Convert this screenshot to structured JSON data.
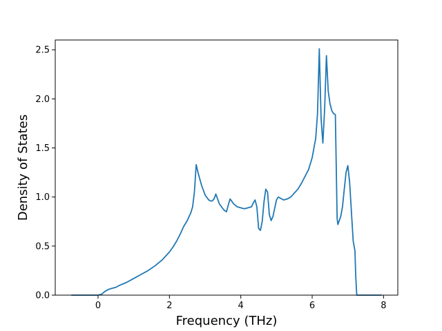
{
  "chart_data": {
    "type": "line",
    "xlabel": "Frequency (THz)",
    "ylabel": "Density of States",
    "xlim": [
      -1.2,
      8.4
    ],
    "ylim": [
      0,
      2.6
    ],
    "xticks": [
      0,
      2,
      4,
      6,
      8
    ],
    "xtick_labels": [
      "0",
      "2",
      "4",
      "6",
      "8"
    ],
    "yticks": [
      0,
      0.5,
      1.0,
      1.5,
      2.0,
      2.5
    ],
    "ytick_labels": [
      "0.0",
      "0.5",
      "1.0",
      "1.5",
      "2.0",
      "2.5"
    ],
    "grid": false,
    "line_color": "#1f77b4",
    "series": [
      {
        "x": [
          -0.75,
          -0.2,
          0.0,
          0.1,
          0.2,
          0.3,
          0.4,
          0.5,
          0.6,
          0.8,
          1.0,
          1.2,
          1.4,
          1.6,
          1.8,
          2.0,
          2.1,
          2.2,
          2.3,
          2.4,
          2.5,
          2.55,
          2.6,
          2.65,
          2.7,
          2.75,
          2.8,
          2.9,
          3.0,
          3.1,
          3.15,
          3.2,
          3.25,
          3.3,
          3.4,
          3.5,
          3.55,
          3.6,
          3.65,
          3.7,
          3.8,
          3.9,
          4.0,
          4.1,
          4.2,
          4.3,
          4.35,
          4.4,
          4.45,
          4.5,
          4.55,
          4.6,
          4.65,
          4.7,
          4.75,
          4.8,
          4.85,
          4.9,
          5.0,
          5.05,
          5.1,
          5.2,
          5.3,
          5.4,
          5.5,
          5.6,
          5.7,
          5.8,
          5.9,
          6.0,
          6.1,
          6.15,
          6.2,
          6.25,
          6.3,
          6.35,
          6.4,
          6.45,
          6.5,
          6.55,
          6.6,
          6.65,
          6.7,
          6.72,
          6.8,
          6.85,
          6.9,
          6.95,
          7.0,
          7.05,
          7.1,
          7.15,
          7.2,
          7.22,
          7.25,
          7.5,
          7.95
        ],
        "y": [
          0.0,
          0.0,
          0.0,
          0.01,
          0.04,
          0.06,
          0.07,
          0.08,
          0.1,
          0.13,
          0.17,
          0.21,
          0.25,
          0.3,
          0.36,
          0.44,
          0.49,
          0.55,
          0.62,
          0.7,
          0.76,
          0.8,
          0.84,
          0.9,
          1.05,
          1.33,
          1.25,
          1.12,
          1.02,
          0.97,
          0.96,
          0.96,
          0.98,
          1.03,
          0.93,
          0.88,
          0.86,
          0.85,
          0.92,
          0.98,
          0.93,
          0.9,
          0.89,
          0.88,
          0.89,
          0.9,
          0.94,
          0.97,
          0.9,
          0.68,
          0.66,
          0.75,
          0.95,
          1.08,
          1.05,
          0.82,
          0.76,
          0.8,
          0.97,
          1.0,
          0.99,
          0.97,
          0.98,
          1.0,
          1.04,
          1.08,
          1.14,
          1.21,
          1.28,
          1.4,
          1.6,
          1.85,
          2.51,
          1.8,
          1.55,
          1.9,
          2.44,
          2.08,
          1.95,
          1.88,
          1.85,
          1.84,
          0.78,
          0.72,
          0.8,
          0.9,
          1.08,
          1.25,
          1.32,
          1.15,
          0.85,
          0.55,
          0.45,
          0.2,
          0.0,
          0.0,
          0.0
        ]
      }
    ]
  }
}
